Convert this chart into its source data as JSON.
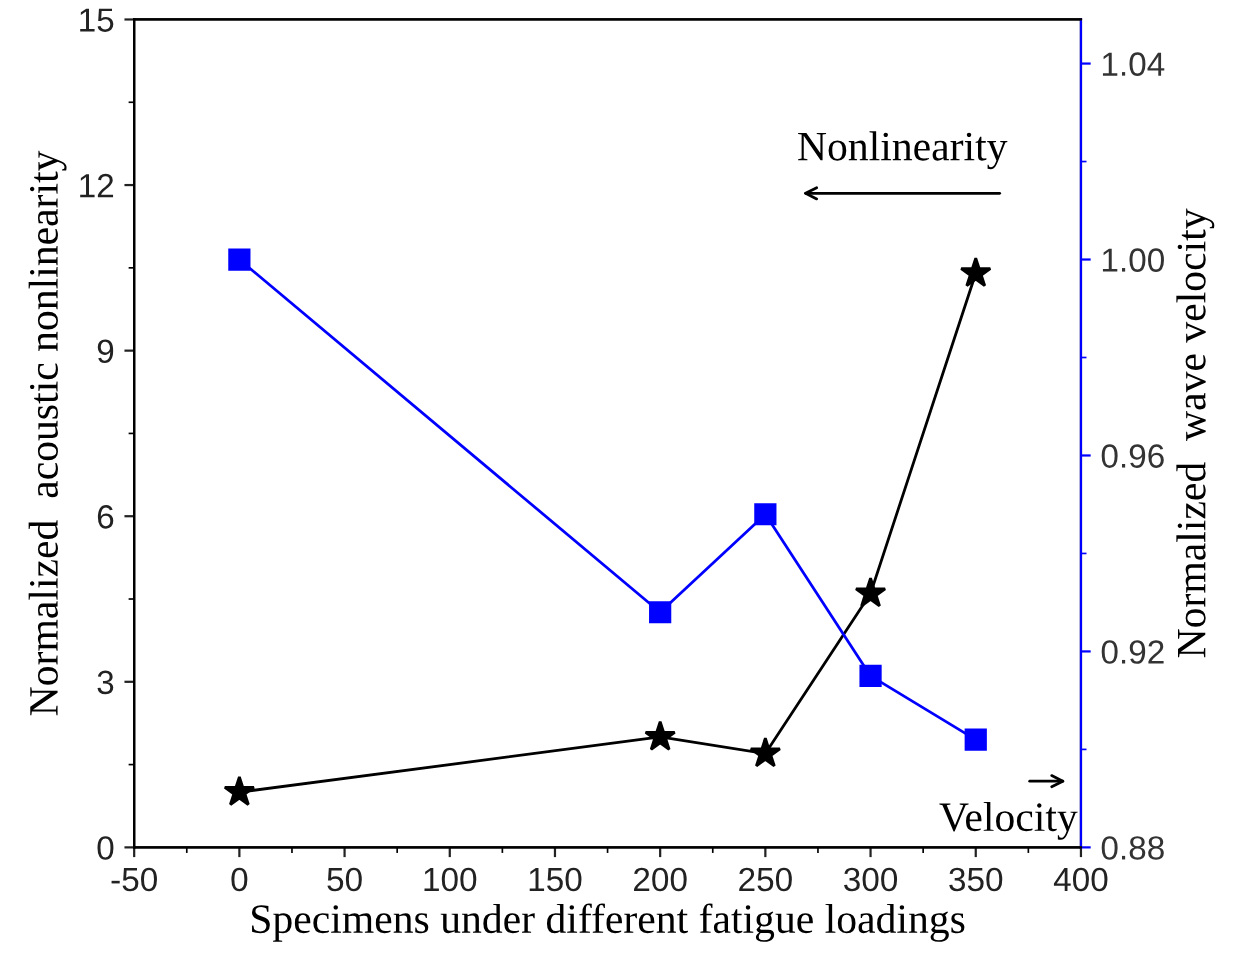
{
  "chart_data": {
    "type": "line",
    "xlabel": "Specimens under different fatigue loadings",
    "ylabel": "Normalized  acoustic nonlinearity",
    "y2label": "Normalized  wave velocity",
    "x": [
      0,
      200,
      250,
      300,
      350
    ],
    "series": [
      {
        "color": "#000000",
        "marker": "star",
        "values": [
          1.0,
          2.0,
          1.7,
          4.6,
          10.4
        ]
      },
      {
        "color": "#0000ff",
        "marker": "square",
        "axis": "y2",
        "values": [
          1.0,
          0.928,
          0.948,
          0.915,
          0.902
        ]
      }
    ],
    "xlim": [
      -50,
      400
    ],
    "xticks": [
      -50,
      0,
      50,
      100,
      150,
      200,
      250,
      300,
      350,
      400
    ],
    "ylim": [
      0,
      15
    ],
    "yticks": [
      0,
      3,
      6,
      9,
      12,
      15
    ],
    "y2lim": [
      0.88,
      1.049
    ],
    "y2ticks": [
      0.88,
      0.92,
      0.96,
      {
        "value": 1,
        "label": "1.00"
      },
      1.04
    ],
    "annotations": [
      "Nonlinearity",
      "Velocity"
    ],
    "grid": false,
    "legend": false
  }
}
